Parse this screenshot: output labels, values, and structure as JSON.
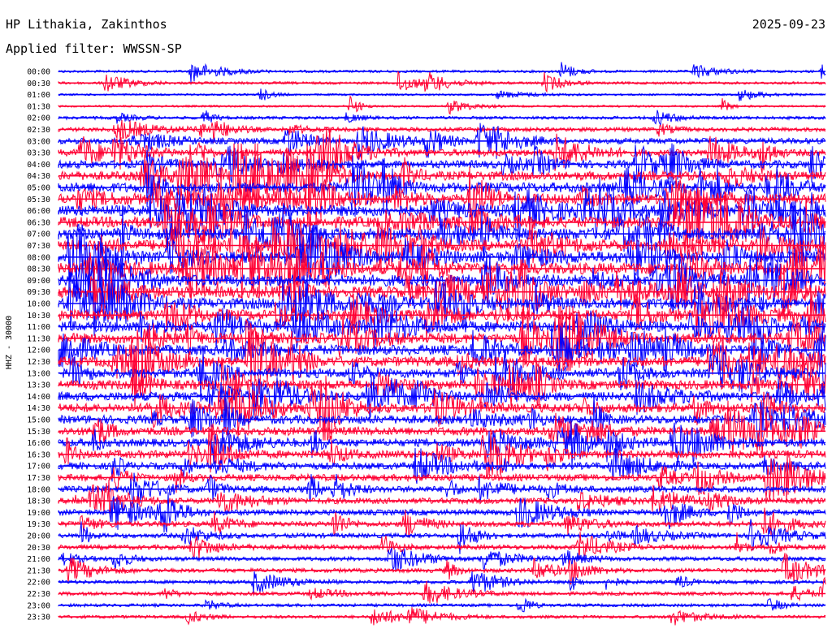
{
  "header": {
    "station": "HP Lithakia, Zakinthos",
    "date": "2025-09-23",
    "filter": "Applied filter: WWSSN-SP"
  },
  "chart_data": {
    "type": "line",
    "title": "HP Lithakia, Zakinthos",
    "ylabel": "HHZ - 30000",
    "row_labels": [
      "00:00",
      "00:30",
      "01:00",
      "01:30",
      "02:00",
      "02:30",
      "03:00",
      "03:30",
      "04:00",
      "04:30",
      "05:00",
      "05:30",
      "06:00",
      "06:30",
      "07:00",
      "07:30",
      "08:00",
      "08:30",
      "09:00",
      "09:30",
      "10:00",
      "10:30",
      "11:00",
      "11:30",
      "12:00",
      "12:30",
      "13:00",
      "13:30",
      "14:00",
      "14:30",
      "15:00",
      "15:30",
      "16:00",
      "16:30",
      "17:00",
      "17:30",
      "18:00",
      "18:30",
      "19:00",
      "19:30",
      "20:00",
      "20:30",
      "21:00",
      "21:30",
      "22:00",
      "22:30",
      "23:00",
      "23:30"
    ],
    "row_activity": [
      0.15,
      0.15,
      0.1,
      0.1,
      0.2,
      0.3,
      0.45,
      0.55,
      0.65,
      0.75,
      0.85,
      0.9,
      0.95,
      0.95,
      1.0,
      1.0,
      1.0,
      1.0,
      1.0,
      1.0,
      0.95,
      0.9,
      0.9,
      0.9,
      0.85,
      0.85,
      0.8,
      0.8,
      0.75,
      0.75,
      0.7,
      0.7,
      0.65,
      0.65,
      0.55,
      0.55,
      0.5,
      0.45,
      0.45,
      0.4,
      0.35,
      0.35,
      0.3,
      0.3,
      0.25,
      0.25,
      0.2,
      0.2
    ],
    "colors": [
      "#0000ff",
      "#ff0033"
    ],
    "grid": false
  }
}
